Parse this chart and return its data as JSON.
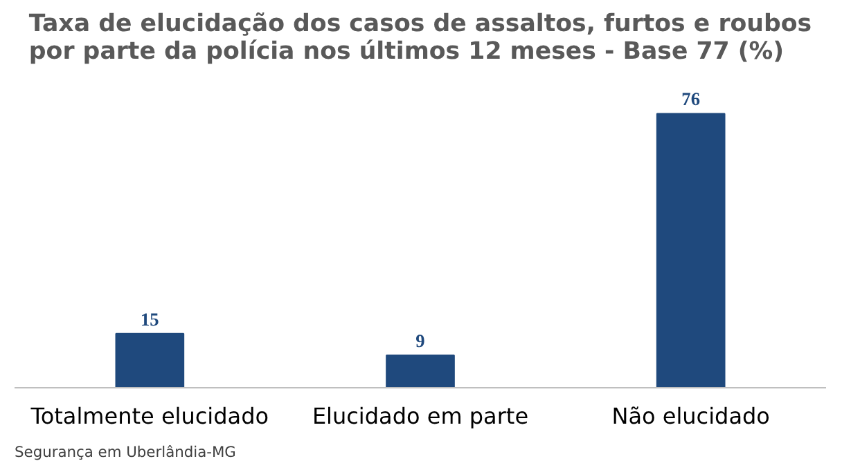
{
  "chart_data": {
    "type": "bar",
    "title": "Taxa de elucidação dos casos de assaltos, furtos e roubos\npor parte da polícia nos últimos 12 meses - Base 77 (%)",
    "categories": [
      "Totalmente elucidado",
      "Elucidado em parte",
      "Não elucidado"
    ],
    "values": [
      15,
      9,
      76
    ],
    "color": "#1f497d",
    "data_labels": true,
    "grid": false,
    "annotations": [
      "Segurança em Uberlândia-MG"
    ]
  }
}
